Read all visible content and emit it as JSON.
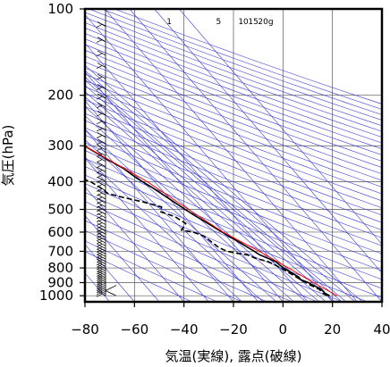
{
  "chart_data": {
    "type": "line",
    "title": "",
    "xlabel": "気温(実線), 露点(破線)",
    "ylabel": "気圧(hPa)",
    "x_ticks": [
      -80,
      -60,
      -40,
      -20,
      0,
      20,
      40
    ],
    "y_ticks": [
      100,
      200,
      300,
      400,
      500,
      600,
      700,
      800,
      900,
      1000
    ],
    "xlim": [
      -80,
      40
    ],
    "ylim": [
      1050,
      100
    ],
    "y_scale": "log",
    "mixing_ratio_labels": [
      "1",
      "5",
      "10",
      "15",
      "20g"
    ],
    "series": [
      {
        "style": "solid",
        "color": "#000000",
        "points": [
          [
            21,
            1000
          ],
          [
            20,
            980
          ],
          [
            20,
            950
          ],
          [
            18,
            920
          ],
          [
            17,
            900
          ],
          [
            15,
            880
          ],
          [
            15,
            860
          ],
          [
            13,
            820
          ],
          [
            12,
            800
          ],
          [
            11,
            760
          ],
          [
            9,
            740
          ],
          [
            7,
            720
          ],
          [
            6,
            700
          ],
          [
            3,
            650
          ],
          [
            1,
            620
          ],
          [
            -1,
            590
          ],
          [
            -3,
            560
          ],
          [
            -6,
            520
          ],
          [
            -8,
            490
          ],
          [
            -10,
            460
          ],
          [
            -13,
            420
          ],
          [
            -16,
            390
          ],
          [
            -18,
            360
          ],
          [
            -22,
            330
          ],
          [
            -26,
            300
          ],
          [
            -30,
            280
          ],
          [
            -34,
            260
          ],
          [
            -40,
            240
          ],
          [
            -44,
            225
          ],
          [
            -49,
            200
          ],
          [
            -53,
            180
          ],
          [
            -58,
            160
          ],
          [
            -62,
            140
          ],
          [
            -65,
            130
          ],
          [
            -68,
            120
          ],
          [
            -70,
            115
          ],
          [
            -72,
            108
          ],
          [
            -73,
            100
          ]
        ]
      },
      {
        "style": "dashed",
        "color": "#000000",
        "points": [
          [
            20,
            1000
          ],
          [
            19,
            980
          ],
          [
            19,
            950
          ],
          [
            17,
            920
          ],
          [
            16,
            900
          ],
          [
            15,
            880
          ],
          [
            14,
            860
          ],
          [
            12,
            820
          ],
          [
            11,
            800
          ],
          [
            8,
            760
          ],
          [
            4,
            740
          ],
          [
            2,
            720
          ],
          [
            -2,
            710
          ],
          [
            -5,
            700
          ],
          [
            -7,
            680
          ],
          [
            -8,
            650
          ],
          [
            -9,
            620
          ],
          [
            -12,
            600
          ],
          [
            -16,
            590
          ],
          [
            -12,
            560
          ],
          [
            -14,
            530
          ],
          [
            -18,
            510
          ],
          [
            -16,
            490
          ],
          [
            -22,
            470
          ],
          [
            -28,
            455
          ],
          [
            -33,
            440
          ],
          [
            -34,
            420
          ],
          [
            -36,
            400
          ],
          [
            -41,
            380
          ],
          [
            -43,
            360
          ],
          [
            -42,
            340
          ],
          [
            -46,
            330
          ],
          [
            -44,
            310
          ],
          [
            -46,
            290
          ],
          [
            -48,
            270
          ],
          [
            -50,
            250
          ],
          [
            -56,
            240
          ],
          [
            -64,
            240
          ],
          [
            -82,
            240
          ]
        ]
      },
      {
        "style": "solid",
        "color": "#ff0000",
        "points": [
          [
            24,
            1000
          ],
          [
            19,
            900
          ],
          [
            14,
            800
          ],
          [
            8,
            700
          ],
          [
            0,
            600
          ],
          [
            -6,
            500
          ],
          [
            -13,
            400
          ],
          [
            -26,
            300
          ],
          [
            -48,
            200
          ],
          [
            -58,
            170
          ],
          [
            -72,
            140
          ],
          [
            -90,
            120
          ]
        ]
      }
    ]
  }
}
